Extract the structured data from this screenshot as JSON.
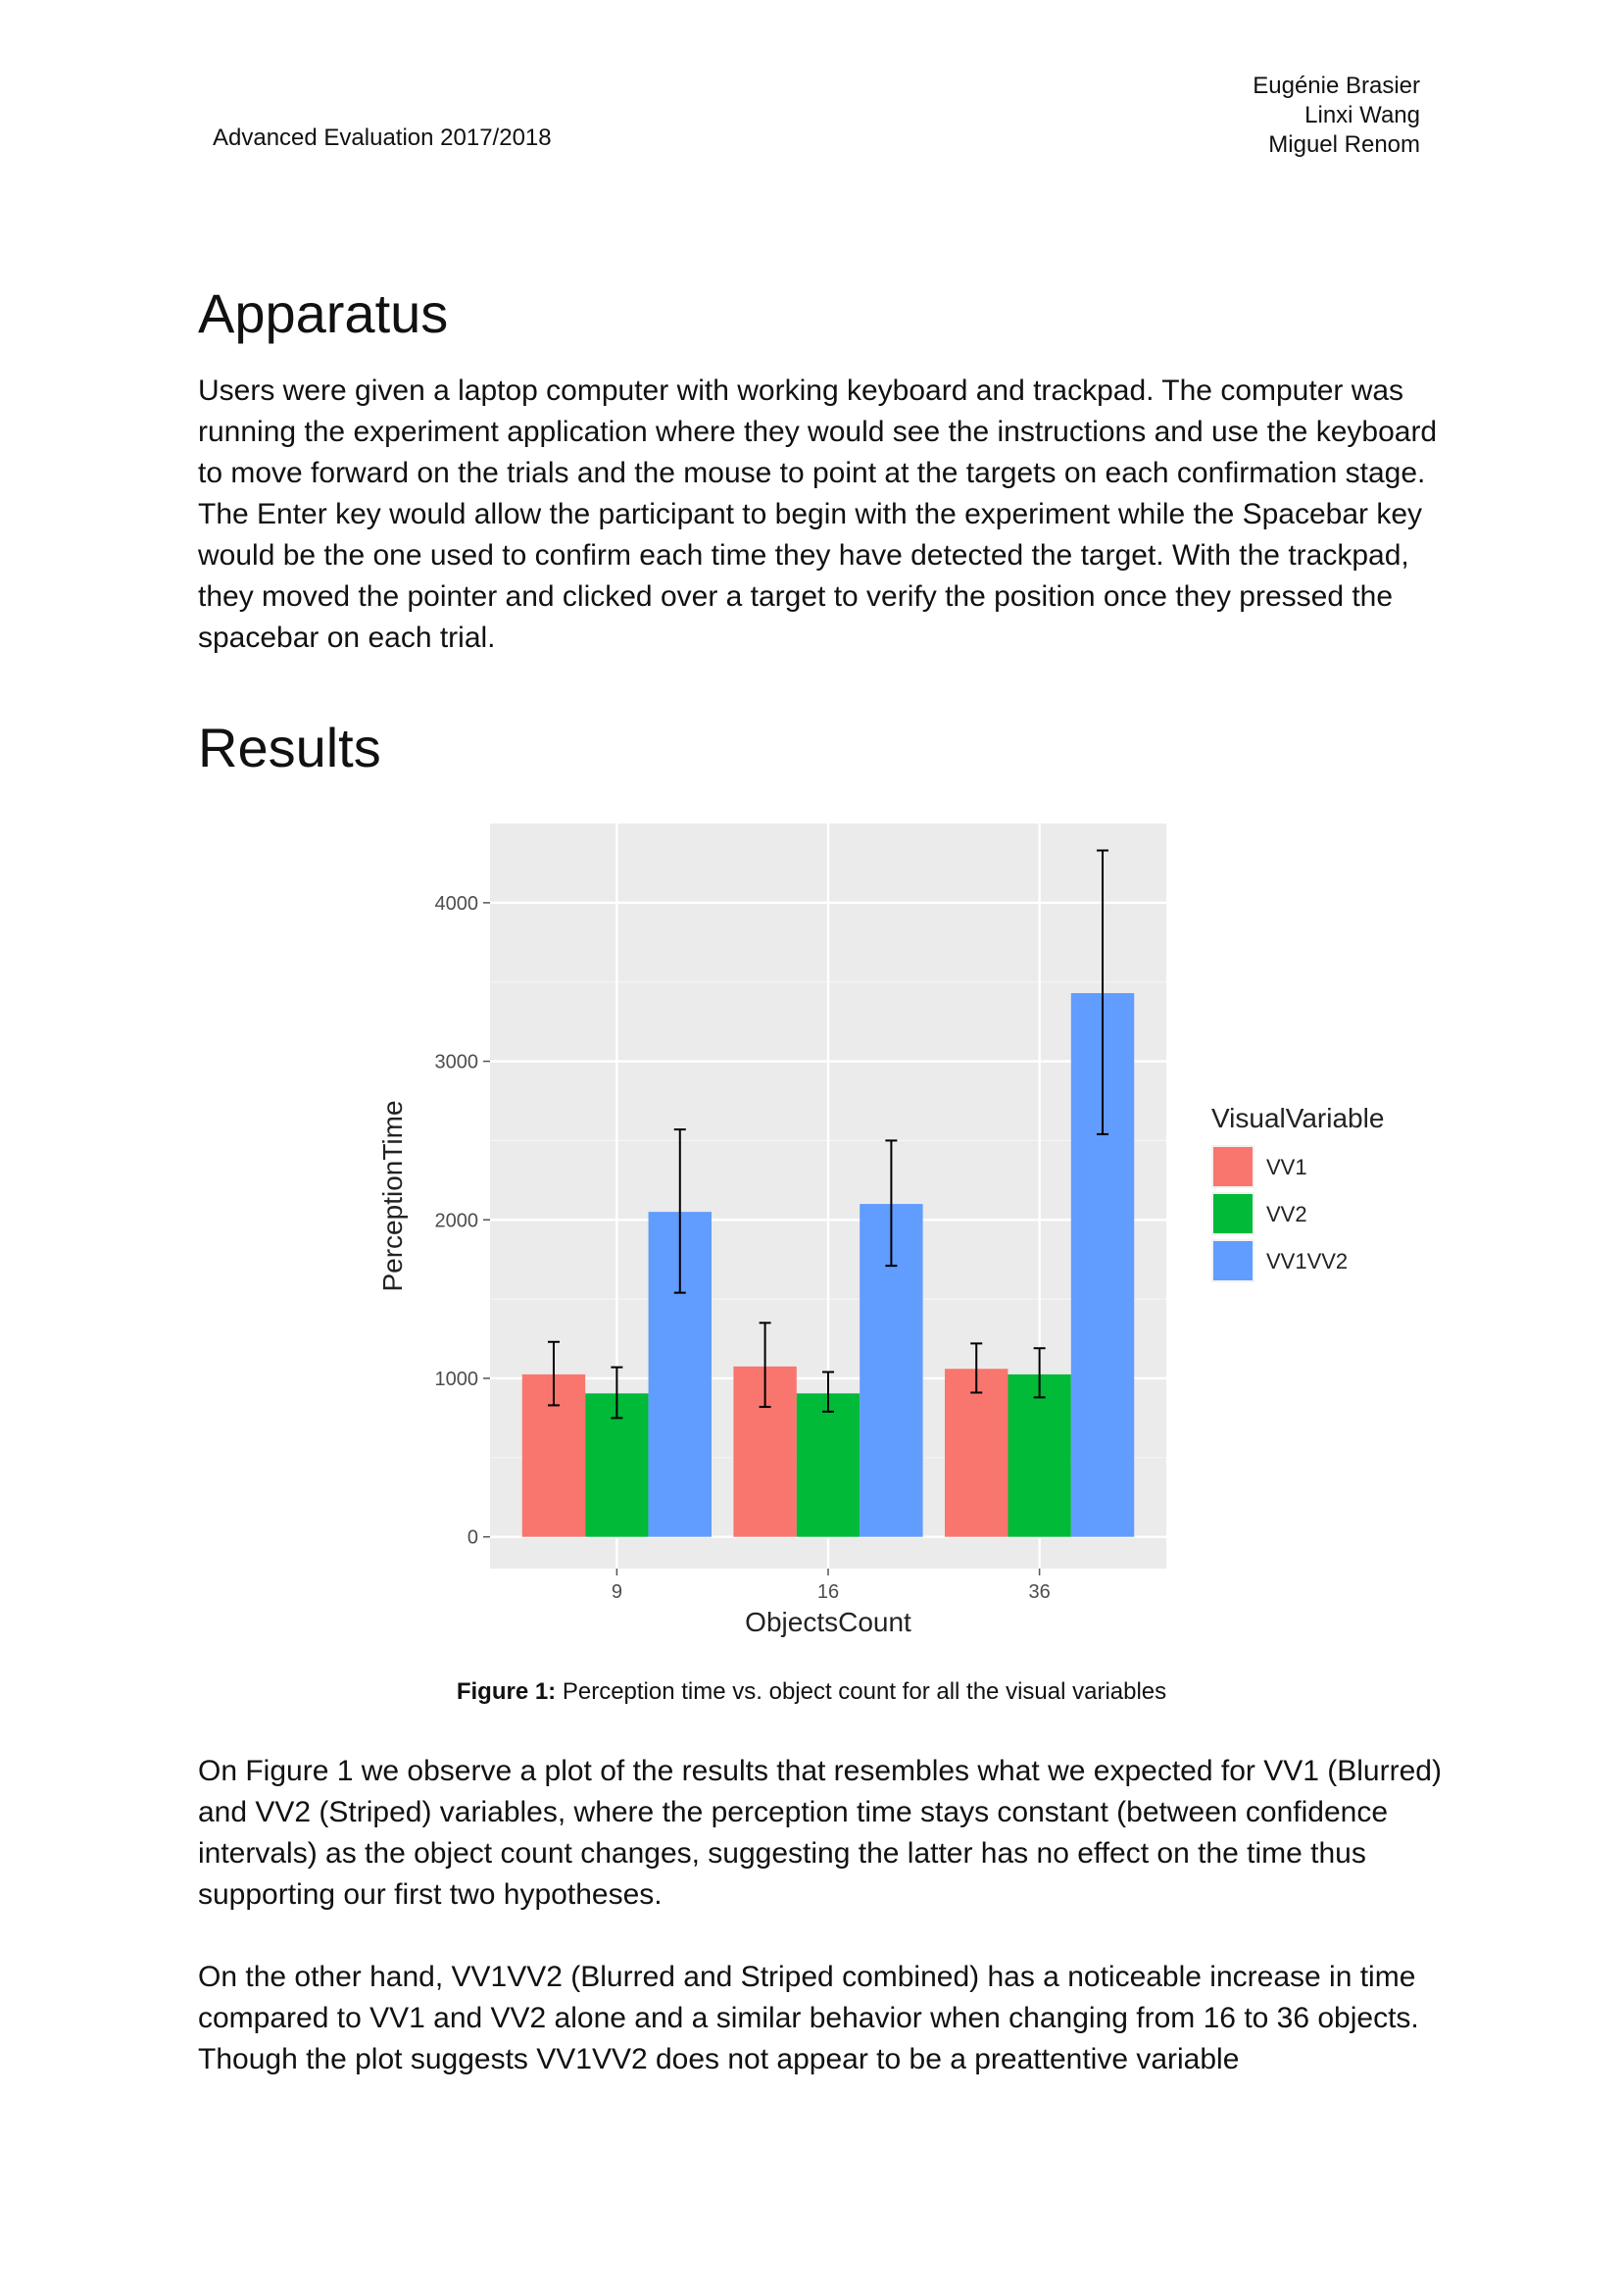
{
  "header": {
    "course": "Advanced Evaluation 2017/2018",
    "authors": [
      "Eugénie Brasier",
      "Linxi Wang",
      "Miguel Renom"
    ]
  },
  "sections": {
    "apparatus_title": "Apparatus",
    "apparatus_text": "Users were given a laptop computer with working keyboard and trackpad. The computer was running the experiment application where they would see the instructions and use the keyboard to move forward on the trials and the mouse to point at the targets on each confirmation stage. The Enter key would allow the participant to begin with the experiment while the Spacebar key would be the one used to confirm each time they have detected the target. With the trackpad, they moved the pointer and clicked over a target to verify the position once they pressed the spacebar on each trial.",
    "results_title": "Results",
    "results_text_1": "On Figure 1 we observe a plot of the results that resembles what we expected for VV1 (Blurred) and VV2 (Striped) variables, where the perception time stays constant (between confidence intervals) as the object count changes, suggesting the latter has no effect on the time thus supporting our first two hypotheses.",
    "results_text_2": "On the other hand, VV1VV2 (Blurred and Striped combined) has a noticeable increase in time compared to VV1 and VV2 alone and a similar behavior when changing from 16 to 36 objects. Though the plot suggests VV1VV2 does not appear to be a preattentive variable"
  },
  "figure": {
    "label": "Figure 1:",
    "caption": "Perception time vs. object count for all the visual variables"
  },
  "chart_data": {
    "type": "bar",
    "title": "",
    "xlabel": "ObjectsCount",
    "ylabel": "PerceptionTime",
    "categories": [
      "9",
      "16",
      "36"
    ],
    "ylim": [
      -200,
      4500
    ],
    "yticks": [
      0,
      1000,
      2000,
      3000,
      4000
    ],
    "grid": true,
    "legend": {
      "title": "VisualVariable",
      "position": "right"
    },
    "series": [
      {
        "name": "VV1",
        "color": "#F8766D",
        "values": [
          1025,
          1075,
          1060
        ],
        "err_low": [
          830,
          820,
          910
        ],
        "err_high": [
          1230,
          1350,
          1220
        ]
      },
      {
        "name": "VV2",
        "color": "#00BA38",
        "values": [
          905,
          905,
          1025
        ],
        "err_low": [
          750,
          790,
          880
        ],
        "err_high": [
          1070,
          1040,
          1190
        ]
      },
      {
        "name": "VV1VV2",
        "color": "#619CFF",
        "values": [
          2050,
          2100,
          3430
        ],
        "err_low": [
          1540,
          1710,
          2540
        ],
        "err_high": [
          2570,
          2500,
          4330
        ]
      }
    ]
  }
}
